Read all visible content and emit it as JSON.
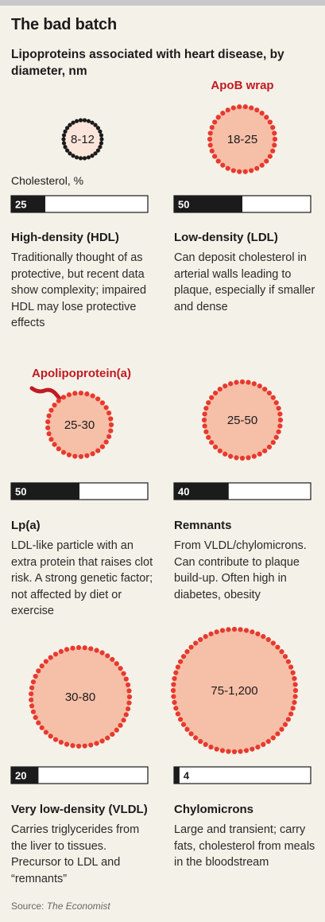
{
  "title": "The bad batch",
  "subtitle": "Lipoproteins associated with heart disease, by diameter, nm",
  "bar_label": "Cholesterol, %",
  "source_prefix": "Source: ",
  "source_name": "The Economist",
  "colors": {
    "particle_fill": "#f6bfa8",
    "particle_dots": "#e8392e",
    "hdl_dots": "#1b1b1b",
    "bar_fill": "#1b1b1b",
    "accent_red": "#c01a22"
  },
  "chart_data": {
    "type": "bar",
    "categories": [
      "High-density (HDL)",
      "Low-density (LDL)",
      "Lp(a)",
      "Remnants",
      "Very low-density (VLDL)",
      "Chylomicrons"
    ],
    "series": [
      {
        "name": "Cholesterol, %",
        "values": [
          25,
          50,
          50,
          40,
          20,
          4
        ]
      }
    ],
    "diameter_nm": [
      "8-12",
      "18-25",
      "25-30",
      "25-50",
      "30-80",
      "75-1,200"
    ],
    "ylim": [
      0,
      100
    ],
    "annotations": [
      "ApoB wrap",
      "Apolipoprotein(a)"
    ]
  },
  "items": [
    {
      "name": "High-density (HDL)",
      "desc": "Traditionally thought of as protective, but recent data show complexity; impaired HDL may lose protective effects"
    },
    {
      "name": "Low-density (LDL)",
      "desc": "Can deposit cholesterol in arterial walls leading to plaque, especially if smaller and dense"
    },
    {
      "name": "Lp(a)",
      "desc": "LDL-like particle with an extra protein that raises clot risk. A strong genetic factor; not affected by diet or exercise"
    },
    {
      "name": "Remnants",
      "desc": "From VLDL/chylomicrons. Can contribute to plaque build-up. Often high in diabetes, obesity"
    },
    {
      "name": "Very low-density (VLDL)",
      "desc": "Carries triglycerides from the liver to tissues. Precursor to LDL and “remnants”"
    },
    {
      "name": "Chylomicrons",
      "desc": "Large and transient; carry fats, cholesterol from meals in the bloodstream"
    }
  ]
}
